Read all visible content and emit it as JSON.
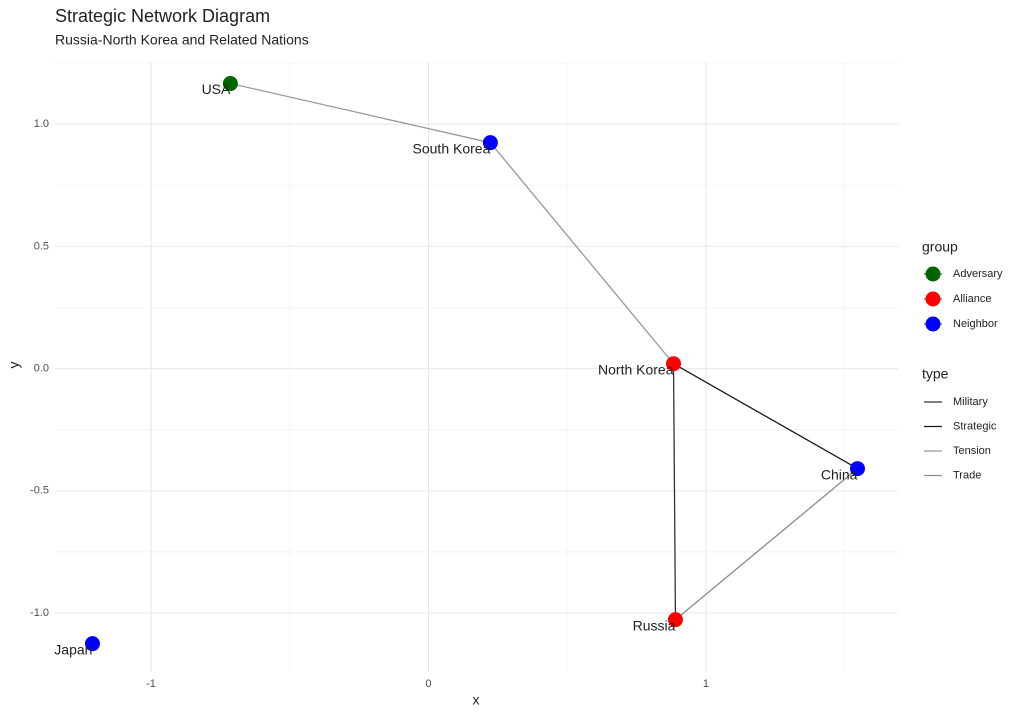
{
  "chart_data": {
    "type": "network",
    "title": "Strategic Network Diagram",
    "subtitle": "Russia-North Korea and Related Nations",
    "x_label": "x",
    "y_label": "y",
    "xlim": [
      -1.346,
      1.692
    ],
    "ylim": [
      -1.241,
      1.254
    ],
    "xticks": [
      -1,
      0,
      1
    ],
    "yticks": [
      {
        "value": -1,
        "label": "-1.0"
      },
      {
        "value": -0.5,
        "label": "-0.5"
      },
      {
        "value": 0,
        "label": "0.0"
      },
      {
        "value": 0.5,
        "label": "0.5"
      },
      {
        "value": 1,
        "label": "1.0"
      }
    ],
    "grid": true,
    "nodes": [
      {
        "name": "USA",
        "x": -0.714,
        "y": 1.166,
        "group": "Adversary"
      },
      {
        "name": "South Korea",
        "x": 0.223,
        "y": 0.924,
        "group": "Neighbor"
      },
      {
        "name": "North Korea",
        "x": 0.883,
        "y": 0.02,
        "group": "Alliance"
      },
      {
        "name": "China",
        "x": 1.546,
        "y": -0.409,
        "group": "Neighbor"
      },
      {
        "name": "Russia",
        "x": 0.89,
        "y": -1.027,
        "group": "Alliance"
      },
      {
        "name": "Japan",
        "x": -1.211,
        "y": -1.125,
        "group": "Neighbor"
      }
    ],
    "edges": [
      {
        "from": "USA",
        "to": "South Korea",
        "type": "Tension"
      },
      {
        "from": "South Korea",
        "to": "North Korea",
        "type": "Tension"
      },
      {
        "from": "North Korea",
        "to": "China",
        "type": "Strategic"
      },
      {
        "from": "North Korea",
        "to": "Russia",
        "type": "Military"
      },
      {
        "from": "Russia",
        "to": "China",
        "type": "Trade"
      }
    ],
    "group_legend_title": "group",
    "groups": [
      {
        "name": "Adversary",
        "color": "#006400"
      },
      {
        "name": "Alliance",
        "color": "#ff0000"
      },
      {
        "name": "Neighbor",
        "color": "#0000ff"
      }
    ],
    "type_legend_title": "type",
    "edge_types": [
      {
        "name": "Military",
        "color": "#333333"
      },
      {
        "name": "Strategic",
        "color": "#1a1a1a"
      },
      {
        "name": "Tension",
        "color": "#999999"
      },
      {
        "name": "Trade",
        "color": "#8c8c8c"
      }
    ]
  }
}
